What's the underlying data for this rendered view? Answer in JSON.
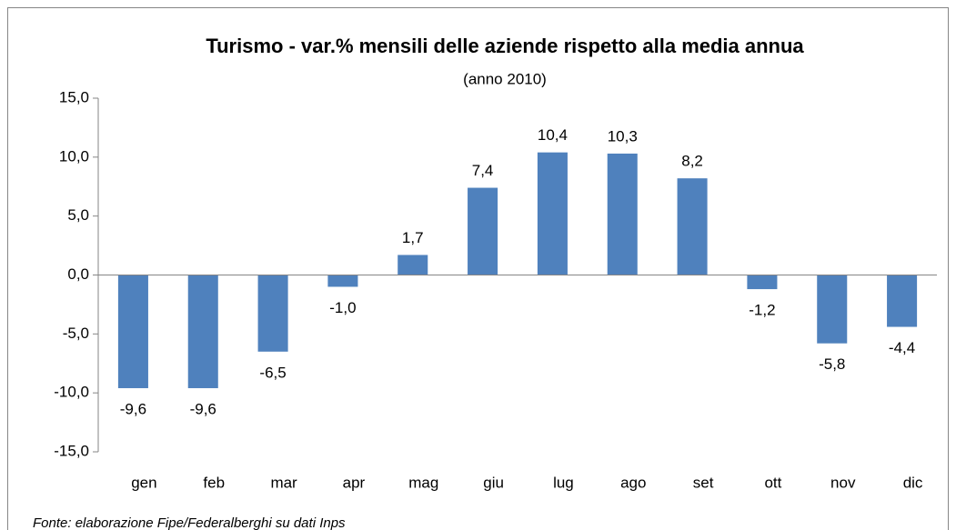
{
  "chart_data": {
    "type": "bar",
    "title": "Turismo - var.% mensili delle aziende  rispetto alla media annua",
    "subtitle": "(anno 2010)",
    "source": "Fonte: elaborazione Fipe/Federalberghi su dati Inps",
    "categories": [
      "gen",
      "feb",
      "mar",
      "apr",
      "mag",
      "giu",
      "lug",
      "ago",
      "set",
      "ott",
      "nov",
      "dic"
    ],
    "values": [
      -9.6,
      -9.6,
      -6.5,
      -1.0,
      1.7,
      7.4,
      10.4,
      10.3,
      8.2,
      -1.2,
      -5.8,
      -4.4
    ],
    "value_labels": [
      "-9,6",
      "-9,6",
      "-6,5",
      "-1,0",
      "1,7",
      "7,4",
      "10,4",
      "10,3",
      "8,2",
      "-1,2",
      "-5,8",
      "-4,4"
    ],
    "color": "#4f81bd",
    "ylim": [
      -15,
      15
    ],
    "yticks": [
      {
        "value": -15,
        "label": "-15,0"
      },
      {
        "value": -10,
        "label": "-10,0"
      },
      {
        "value": -5,
        "label": "-5,0"
      },
      {
        "value": 0,
        "label": "0,0"
      },
      {
        "value": 5,
        "label": "5,0"
      },
      {
        "value": 10,
        "label": "10,0"
      },
      {
        "value": 15,
        "label": "15,0"
      }
    ],
    "grid": false
  }
}
